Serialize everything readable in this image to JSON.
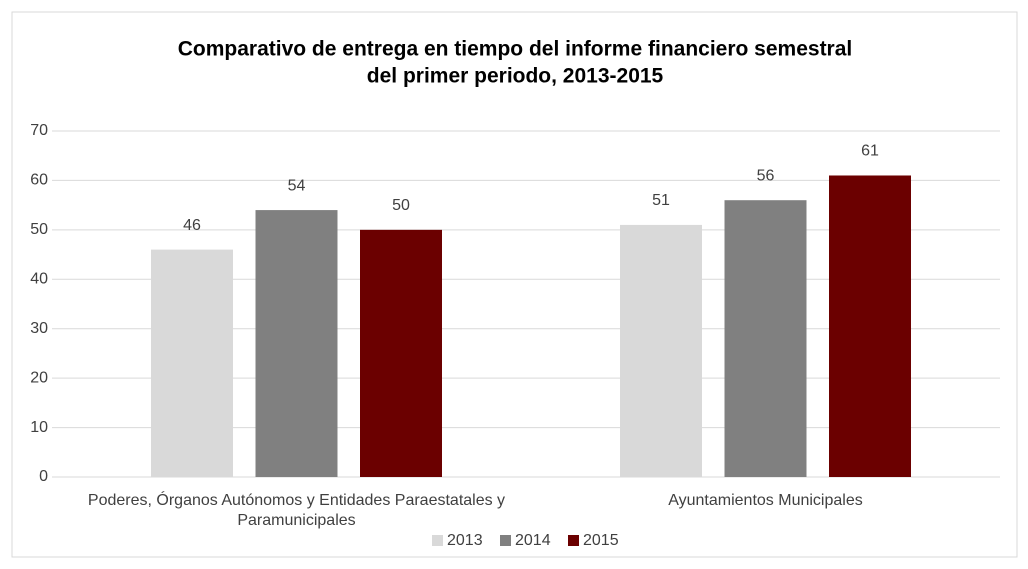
{
  "chart_data": {
    "type": "bar",
    "title": [
      "Comparativo de entrega en tiempo del informe financiero semestral",
      "del primer periodo, 2013-2015"
    ],
    "categories": [
      "Poderes, Órganos Autónomos y Entidades Paraestatales y Paramunicipales",
      "Ayuntamientos Municipales"
    ],
    "series": [
      {
        "name": "2013",
        "color": "#d9d9d9",
        "values": [
          46,
          51
        ]
      },
      {
        "name": "2014",
        "color": "#808080",
        "values": [
          54,
          56
        ]
      },
      {
        "name": "2015",
        "color": "#6b0000",
        "values": [
          50,
          61
        ]
      }
    ],
    "ylim": [
      0,
      70
    ],
    "yticks": [
      0,
      10,
      20,
      30,
      40,
      50,
      60,
      70
    ],
    "grid": true,
    "legend": "bottom"
  }
}
